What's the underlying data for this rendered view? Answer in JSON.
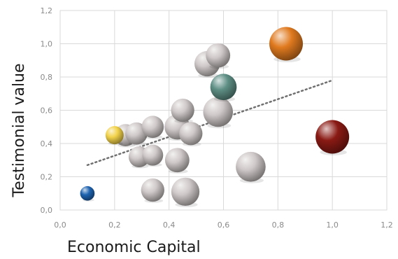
{
  "chart_data": {
    "type": "scatter",
    "subtype": "bubble",
    "title": "",
    "xlabel": "Economic Capital",
    "ylabel": "Testimonial value",
    "xlim": [
      0.0,
      1.2
    ],
    "ylim": [
      0.0,
      1.2
    ],
    "x_ticks": [
      0.0,
      0.2,
      0.4,
      0.6,
      0.8,
      1.0,
      1.2
    ],
    "y_ticks": [
      0.0,
      0.2,
      0.4,
      0.6,
      0.8,
      1.0,
      1.2
    ],
    "x_tick_labels": [
      "0,0",
      "0,2",
      "0,4",
      "0,6",
      "0,8",
      "1,0",
      "1,2"
    ],
    "y_tick_labels": [
      "0,0",
      "0,2",
      "0,4",
      "0,6",
      "0,8",
      "1,0",
      "1,2"
    ],
    "grid": true,
    "legend": "none",
    "trendline": {
      "style": "dotted",
      "color": "#707070",
      "x": [
        0.1,
        1.0
      ],
      "y": [
        0.27,
        0.78
      ]
    },
    "points": [
      {
        "x": 0.1,
        "y": 0.1,
        "size": 0.1,
        "color": "#1e63b0"
      },
      {
        "x": 0.2,
        "y": 0.45,
        "size": 0.2,
        "color": "#f2d24a"
      },
      {
        "x": 0.24,
        "y": 0.45,
        "size": 0.35,
        "color": "#cfc8c8"
      },
      {
        "x": 0.28,
        "y": 0.46,
        "size": 0.35,
        "color": "#cfc8c8"
      },
      {
        "x": 0.34,
        "y": 0.5,
        "size": 0.35,
        "color": "#cfc8c8"
      },
      {
        "x": 0.29,
        "y": 0.32,
        "size": 0.3,
        "color": "#cfc8c8"
      },
      {
        "x": 0.34,
        "y": 0.33,
        "size": 0.3,
        "color": "#cfc8c8"
      },
      {
        "x": 0.34,
        "y": 0.12,
        "size": 0.4,
        "color": "#cfc8c8"
      },
      {
        "x": 0.43,
        "y": 0.3,
        "size": 0.45,
        "color": "#cfc8c8"
      },
      {
        "x": 0.43,
        "y": 0.5,
        "size": 0.5,
        "color": "#cfc8c8"
      },
      {
        "x": 0.45,
        "y": 0.6,
        "size": 0.4,
        "color": "#cfc8c8"
      },
      {
        "x": 0.48,
        "y": 0.46,
        "size": 0.4,
        "color": "#cfc8c8"
      },
      {
        "x": 0.46,
        "y": 0.11,
        "size": 0.65,
        "color": "#cfc8c8"
      },
      {
        "x": 0.54,
        "y": 0.88,
        "size": 0.5,
        "color": "#cfc8c8"
      },
      {
        "x": 0.58,
        "y": 0.93,
        "size": 0.45,
        "color": "#cfc8c8"
      },
      {
        "x": 0.58,
        "y": 0.59,
        "size": 0.75,
        "color": "#cfc8c8"
      },
      {
        "x": 0.6,
        "y": 0.74,
        "size": 0.55,
        "color": "#5e8f85"
      },
      {
        "x": 0.7,
        "y": 0.26,
        "size": 0.75,
        "color": "#cfc8c8"
      },
      {
        "x": 0.83,
        "y": 1.0,
        "size": 1.0,
        "color": "#e07a1f"
      },
      {
        "x": 1.0,
        "y": 0.44,
        "size": 1.0,
        "color": "#8a1a14"
      }
    ]
  }
}
